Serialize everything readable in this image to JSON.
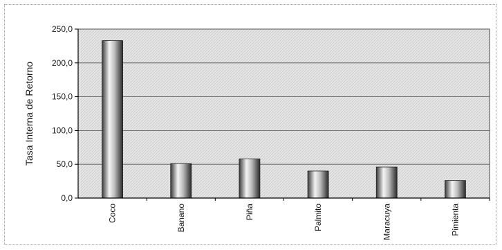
{
  "chart_data": {
    "type": "bar",
    "title": "",
    "xlabel": "",
    "ylabel": "Tasa Interna de Retorno",
    "categories": [
      "Coco",
      "Banano",
      "Piña",
      "Palmito",
      "Maracuya",
      "Pimienta"
    ],
    "values": [
      233,
      51,
      58,
      40,
      46,
      26
    ],
    "ylim": [
      0,
      250
    ],
    "yticks": [
      0,
      50,
      100,
      150,
      200,
      250
    ],
    "ytick_labels": [
      "0,0",
      "50,0",
      "100,0",
      "150,0",
      "200,0",
      "250,0"
    ],
    "grid": true,
    "legend": "none",
    "colors": {
      "plot_bg": "#e4e4e4",
      "bar_dark": "#3a3a3a",
      "bar_light": "#f4f4f4",
      "gridline": "#555555",
      "axis": "#000000"
    }
  }
}
